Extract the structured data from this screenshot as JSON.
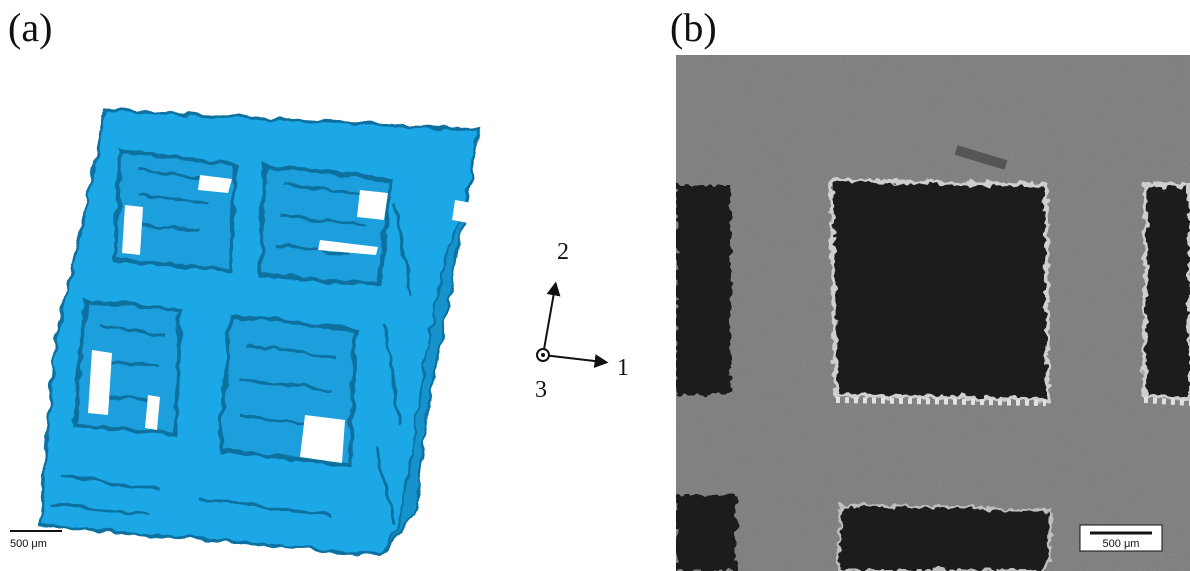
{
  "panels": {
    "a": {
      "label": "(a)",
      "scale_bar": "500 μm"
    },
    "b": {
      "label": "(b)",
      "scale_bar": "500 μm"
    }
  },
  "axes": {
    "axis1": "1",
    "axis2": "2",
    "axis3": "3"
  },
  "colors": {
    "ct_blue": "#1aa7e6",
    "ct_edge": "#0b6f9e",
    "sem_gray": "#7a7a7a",
    "sem_dark": "#1c1c1c"
  }
}
